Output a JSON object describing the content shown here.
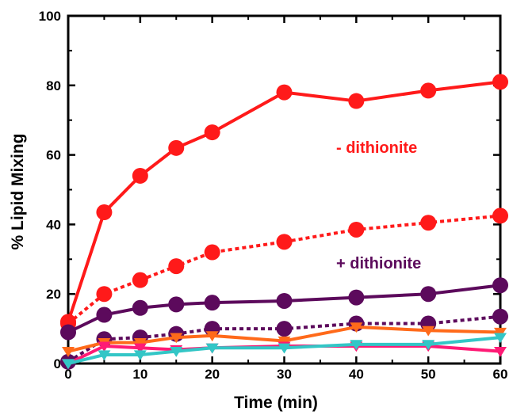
{
  "chart_data": {
    "type": "line",
    "title": "",
    "xlabel": "Time (min)",
    "ylabel": "% Lipid Mixing",
    "xlim": [
      0,
      60
    ],
    "ylim": [
      0,
      100
    ],
    "xticks": [
      0,
      10,
      20,
      30,
      40,
      50,
      60
    ],
    "yticks": [
      0,
      20,
      40,
      60,
      80,
      100
    ],
    "grid": false,
    "legend": "none",
    "annotations": [
      {
        "text": "- dithionite",
        "color": "#ff1a1a"
      },
      {
        "text": "+ dithionite",
        "color": "#5c0a5c"
      }
    ],
    "series": [
      {
        "color": "#ff1a1a",
        "marker": "circle",
        "line": "solid",
        "points": [
          [
            0,
            12
          ],
          [
            5,
            43.5
          ],
          [
            10,
            54
          ],
          [
            15,
            62
          ],
          [
            20,
            66.5
          ],
          [
            30,
            78
          ],
          [
            40,
            75.5
          ],
          [
            50,
            78.5
          ],
          [
            60,
            81
          ]
        ]
      },
      {
        "color": "#ff1a1a",
        "marker": "circle",
        "line": "dotted",
        "points": [
          [
            0,
            11.5
          ],
          [
            5,
            20
          ],
          [
            10,
            24
          ],
          [
            15,
            28
          ],
          [
            20,
            32
          ],
          [
            30,
            35
          ],
          [
            40,
            38.5
          ],
          [
            50,
            40.5
          ],
          [
            60,
            42.5
          ]
        ]
      },
      {
        "color": "#5c0a5c",
        "marker": "circle",
        "line": "solid",
        "points": [
          [
            0,
            9
          ],
          [
            5,
            14
          ],
          [
            10,
            16
          ],
          [
            15,
            17
          ],
          [
            20,
            17.5
          ],
          [
            30,
            18
          ],
          [
            40,
            19
          ],
          [
            50,
            20
          ],
          [
            60,
            22.5
          ]
        ]
      },
      {
        "color": "#5c0a5c",
        "marker": "circle",
        "line": "dotted",
        "points": [
          [
            0,
            0.5
          ],
          [
            5,
            7
          ],
          [
            10,
            7.5
          ],
          [
            15,
            8.5
          ],
          [
            20,
            10
          ],
          [
            30,
            10
          ],
          [
            40,
            11.5
          ],
          [
            50,
            11.5
          ],
          [
            60,
            13.5
          ]
        ]
      },
      {
        "color": "#ff6a1a",
        "marker": "triangle-down",
        "line": "solid",
        "points": [
          [
            0,
            3.5
          ],
          [
            5,
            6
          ],
          [
            10,
            6
          ],
          [
            15,
            7.5
          ],
          [
            20,
            8
          ],
          [
            30,
            6.5
          ],
          [
            40,
            10.5
          ],
          [
            50,
            9.5
          ],
          [
            60,
            9
          ]
        ]
      },
      {
        "color": "#ff1a75",
        "marker": "triangle-down",
        "line": "solid",
        "points": [
          [
            0,
            0
          ],
          [
            5,
            5
          ],
          [
            10,
            4.5
          ],
          [
            15,
            4
          ],
          [
            20,
            4.5
          ],
          [
            30,
            5
          ],
          [
            40,
            5
          ],
          [
            50,
            5
          ],
          [
            60,
            3.5
          ]
        ]
      },
      {
        "color": "#33c6c6",
        "marker": "triangle-down",
        "line": "solid",
        "points": [
          [
            0,
            0
          ],
          [
            5,
            2.5
          ],
          [
            10,
            2.5
          ],
          [
            15,
            3.5
          ],
          [
            20,
            4.5
          ],
          [
            30,
            4.5
          ],
          [
            40,
            5.5
          ],
          [
            50,
            5.5
          ],
          [
            60,
            7.5
          ]
        ]
      }
    ]
  }
}
